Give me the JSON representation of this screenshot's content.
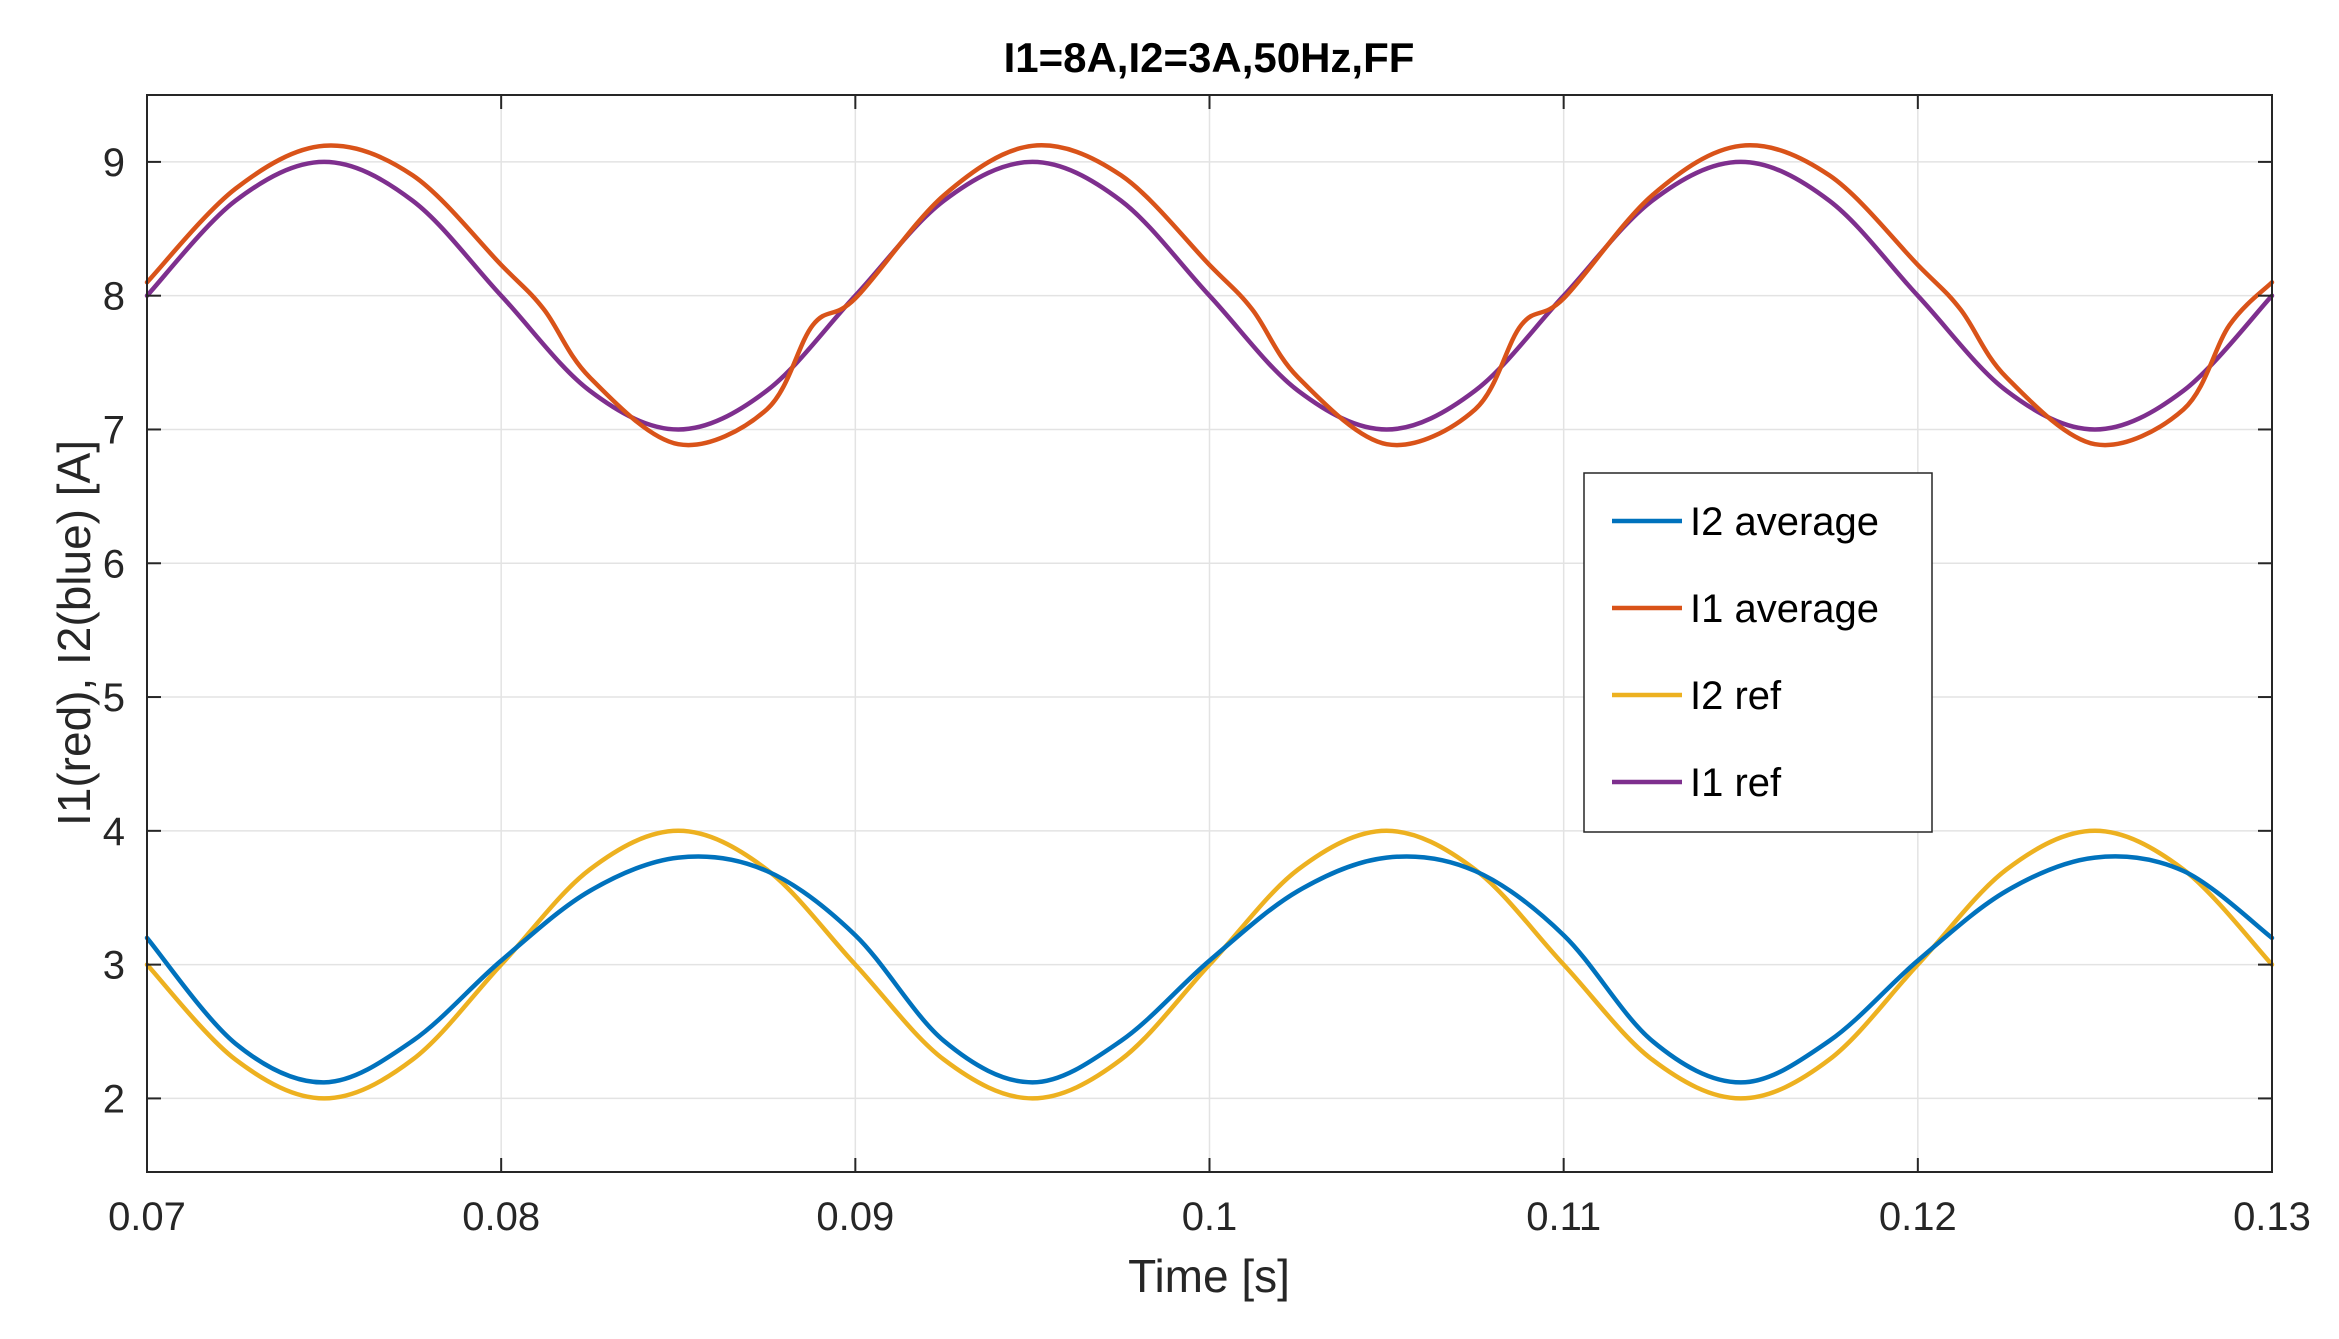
{
  "chart_data": {
    "type": "line",
    "title": "I1=8A,I2=3A,50Hz,FF",
    "xlabel": "Time [s]",
    "ylabel": "I1(red), I2(blue) [A]",
    "xlim": [
      0.07,
      0.13
    ],
    "ylim": [
      1.45,
      9.5
    ],
    "grid": true,
    "legend_position": "right",
    "x_ticks": [
      0.07,
      0.08,
      0.09,
      0.1,
      0.11,
      0.12,
      0.13
    ],
    "x_tick_labels": [
      "0.07",
      "0.08",
      "0.09",
      "0.1",
      "0.11",
      "0.12",
      "0.13"
    ],
    "y_ticks": [
      2,
      3,
      4,
      5,
      6,
      7,
      8,
      9
    ],
    "y_tick_labels": [
      "2",
      "3",
      "4",
      "5",
      "6",
      "7",
      "8",
      "9"
    ],
    "series": [
      {
        "name": "I2 average",
        "color": "#0072BD",
        "x": [
          0.07,
          0.0725,
          0.075,
          0.0775,
          0.08,
          0.0825,
          0.085,
          0.0875,
          0.09,
          0.0925,
          0.095,
          0.0975,
          0.1,
          0.1025,
          0.105,
          0.1075,
          0.11,
          0.1125,
          0.115,
          0.1175,
          0.12,
          0.1225,
          0.125,
          0.1275,
          0.13
        ],
        "values": [
          3.2,
          2.41,
          2.12,
          2.43,
          3.03,
          3.55,
          3.8,
          3.7,
          3.22,
          2.43,
          2.12,
          2.43,
          3.03,
          3.55,
          3.8,
          3.7,
          3.22,
          2.43,
          2.12,
          2.43,
          3.03,
          3.55,
          3.8,
          3.7,
          3.2
        ]
      },
      {
        "name": "I1 average",
        "color": "#D95319",
        "x": [
          0.07,
          0.0725,
          0.075,
          0.0775,
          0.08,
          0.0812,
          0.0825,
          0.085,
          0.0875,
          0.0888,
          0.09,
          0.0925,
          0.095,
          0.0975,
          0.1,
          0.1012,
          0.1025,
          0.105,
          0.1075,
          0.1088,
          0.11,
          0.1125,
          0.115,
          0.1175,
          0.12,
          0.1212,
          0.1225,
          0.125,
          0.1275,
          0.1288,
          0.13
        ],
        "values": [
          8.1,
          8.8,
          9.12,
          8.9,
          8.23,
          7.9,
          7.39,
          6.89,
          7.15,
          7.78,
          7.98,
          8.75,
          9.12,
          8.9,
          8.23,
          7.9,
          7.39,
          6.89,
          7.15,
          7.78,
          7.98,
          8.75,
          9.12,
          8.9,
          8.23,
          7.9,
          7.39,
          6.89,
          7.15,
          7.78,
          8.1
        ]
      },
      {
        "name": "I2 ref",
        "color": "#EDB120",
        "x": [
          0.07,
          0.0725,
          0.075,
          0.0775,
          0.08,
          0.0825,
          0.085,
          0.0875,
          0.09,
          0.0925,
          0.095,
          0.0975,
          0.1,
          0.1025,
          0.105,
          0.1075,
          0.11,
          0.1125,
          0.115,
          0.1175,
          0.12,
          0.1225,
          0.125,
          0.1275,
          0.13
        ],
        "values": [
          3.0,
          2.29,
          2.0,
          2.29,
          3.0,
          3.71,
          4.0,
          3.71,
          3.0,
          2.29,
          2.0,
          2.29,
          3.0,
          3.71,
          4.0,
          3.71,
          3.0,
          2.29,
          2.0,
          2.29,
          3.0,
          3.71,
          4.0,
          3.71,
          3.0
        ]
      },
      {
        "name": "I1 ref",
        "color": "#7E2F8E",
        "x": [
          0.07,
          0.0725,
          0.075,
          0.0775,
          0.08,
          0.0825,
          0.085,
          0.0875,
          0.09,
          0.0925,
          0.095,
          0.0975,
          0.1,
          0.1025,
          0.105,
          0.1075,
          0.11,
          0.1125,
          0.115,
          0.1175,
          0.12,
          0.1225,
          0.125,
          0.1275,
          0.13
        ],
        "values": [
          8.0,
          8.71,
          9.0,
          8.71,
          8.0,
          7.29,
          7.0,
          7.29,
          8.0,
          8.71,
          9.0,
          8.71,
          8.0,
          7.29,
          7.0,
          7.29,
          8.0,
          8.71,
          9.0,
          8.71,
          8.0,
          7.29,
          7.0,
          7.29,
          8.0
        ]
      }
    ]
  }
}
